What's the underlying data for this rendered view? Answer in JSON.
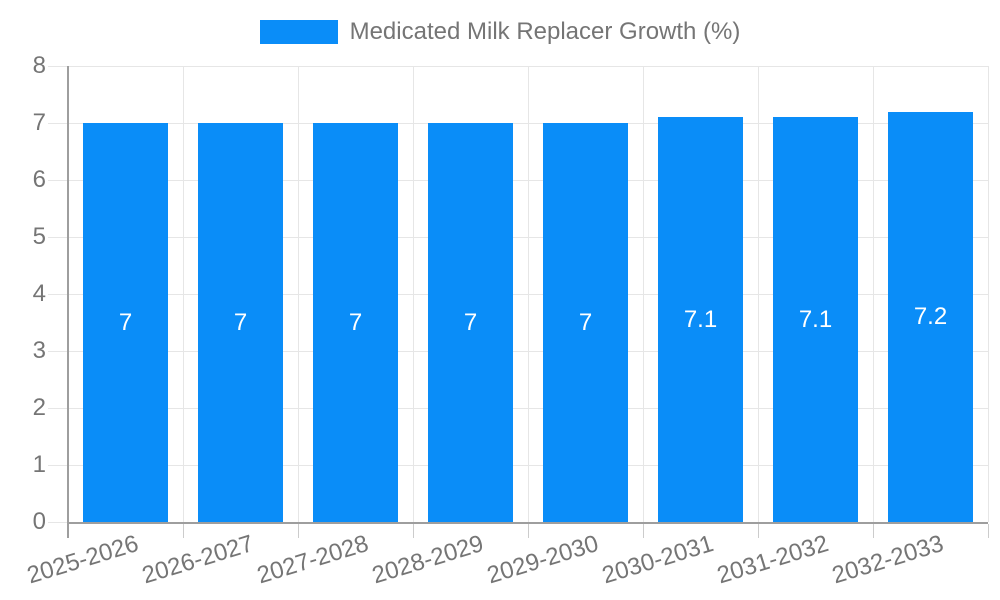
{
  "chart_data": {
    "type": "bar",
    "title": "Medicated Milk Replacer Growth (%)",
    "categories": [
      "2025-2026",
      "2026-2027",
      "2027-2028",
      "2028-2029",
      "2029-2030",
      "2030-2031",
      "2031-2032",
      "2032-2033"
    ],
    "values": [
      7,
      7,
      7,
      7,
      7,
      7.1,
      7.1,
      7.2
    ],
    "bar_value_labels": [
      "7",
      "7",
      "7",
      "7",
      "7",
      "7.1",
      "7.1",
      "7.2"
    ],
    "xlabel": "",
    "ylabel": "",
    "ylim": [
      0,
      8
    ],
    "ytick_labels": [
      "0",
      "1",
      "2",
      "3",
      "4",
      "5",
      "6",
      "7",
      "8"
    ],
    "grid": "on",
    "legend_position": "top-center",
    "colors": {
      "bar": "#0A8DF8",
      "text": "#757575",
      "grid": "#e6e6e6",
      "axis": "#9e9e9e",
      "tick": "#cccccc",
      "value_label": "#ffffff",
      "background": "#ffffff"
    }
  }
}
